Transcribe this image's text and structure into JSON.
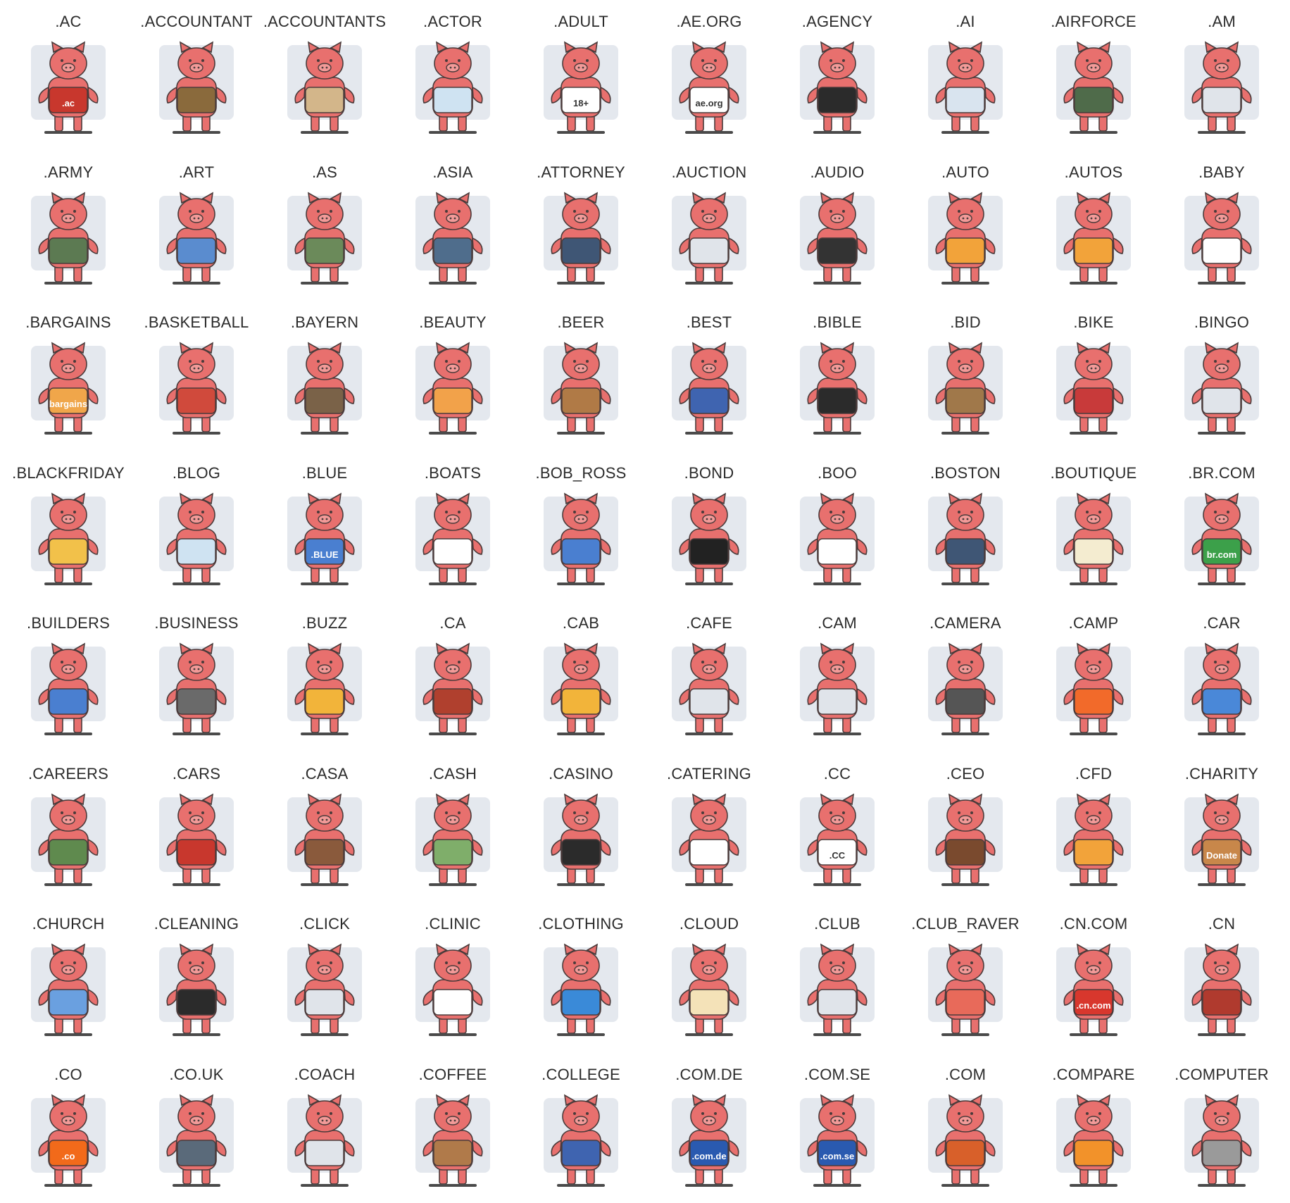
{
  "icon_name": "pig-mascot-icon",
  "colors": {
    "pig_body": "#e8706e",
    "pig_outline": "#4a3b3b",
    "backdrop": "#e4e8ee",
    "ground": "#4a4a4a",
    "label": "#2b2b2b"
  },
  "tiles": [
    {
      "label": ".AC",
      "accent": "#c8372d",
      "badge": ".ac"
    },
    {
      "label": ".ACCOUNTANT",
      "accent": "#8a6a3c"
    },
    {
      "label": ".ACCOUNTANTS",
      "accent": "#d3b68a"
    },
    {
      "label": ".ACTOR",
      "accent": "#cfe3f2"
    },
    {
      "label": ".ADULT",
      "accent": "#ffffff",
      "badge": "18+"
    },
    {
      "label": ".AE.ORG",
      "accent": "#ffffff",
      "badge": "ae.org"
    },
    {
      "label": ".AGENCY",
      "accent": "#2b2b2b"
    },
    {
      "label": ".AI",
      "accent": "#d9e4ef"
    },
    {
      "label": ".AIRFORCE",
      "accent": "#4f6b4a"
    },
    {
      "label": ".AM",
      "accent": "#e0e4ea"
    },
    {
      "label": ".ARMY",
      "accent": "#5c7a52"
    },
    {
      "label": ".ART",
      "accent": "#5a8ccf"
    },
    {
      "label": ".AS",
      "accent": "#6b8a5a"
    },
    {
      "label": ".ASIA",
      "accent": "#4f6d8c"
    },
    {
      "label": ".ATTORNEY",
      "accent": "#3f5675"
    },
    {
      "label": ".AUCTION",
      "accent": "#e0e4ea"
    },
    {
      "label": ".AUDIO",
      "accent": "#333333"
    },
    {
      "label": ".AUTO",
      "accent": "#f2a33a"
    },
    {
      "label": ".AUTOS",
      "accent": "#f2a33a"
    },
    {
      "label": ".BABY",
      "accent": "#ffffff"
    },
    {
      "label": ".BARGAINS",
      "accent": "#f0a64a",
      "badge": "bargains"
    },
    {
      "label": ".BASKETBALL",
      "accent": "#d04a3c"
    },
    {
      "label": ".BAYERN",
      "accent": "#7a6248"
    },
    {
      "label": ".BEAUTY",
      "accent": "#f2a24a"
    },
    {
      "label": ".BEER",
      "accent": "#b07a46"
    },
    {
      "label": ".BEST",
      "accent": "#3f64b0"
    },
    {
      "label": ".BIBLE",
      "accent": "#2b2b2b"
    },
    {
      "label": ".BID",
      "accent": "#a0784a"
    },
    {
      "label": ".BIKE",
      "accent": "#c83a3a"
    },
    {
      "label": ".BINGO",
      "accent": "#e0e4ea"
    },
    {
      "label": ".BLACKFRIDAY",
      "accent": "#f2c14a"
    },
    {
      "label": ".BLOG",
      "accent": "#cfe3f2"
    },
    {
      "label": ".BLUE",
      "accent": "#4a7fd0",
      "badge": ".BLUE"
    },
    {
      "label": ".BOATS",
      "accent": "#ffffff"
    },
    {
      "label": ".BOB_ROSS",
      "accent": "#4a7fd0"
    },
    {
      "label": ".BOND",
      "accent": "#222222"
    },
    {
      "label": ".BOO",
      "accent": "#ffffff"
    },
    {
      "label": ".BOSTON",
      "accent": "#3f5675"
    },
    {
      "label": ".BOUTIQUE",
      "accent": "#f4ecd0"
    },
    {
      "label": ".BR.COM",
      "accent": "#3ca04a",
      "badge": "br.com"
    },
    {
      "label": ".BUILDERS",
      "accent": "#4a7fd0"
    },
    {
      "label": ".BUSINESS",
      "accent": "#6a6a6a"
    },
    {
      "label": ".BUZZ",
      "accent": "#f2b43a"
    },
    {
      "label": ".CA",
      "accent": "#b0402e"
    },
    {
      "label": ".CAB",
      "accent": "#f2b43a"
    },
    {
      "label": ".CAFE",
      "accent": "#e0e4ea"
    },
    {
      "label": ".CAM",
      "accent": "#e0e4ea"
    },
    {
      "label": ".CAMERA",
      "accent": "#555555"
    },
    {
      "label": ".CAMP",
      "accent": "#f26a2a"
    },
    {
      "label": ".CAR",
      "accent": "#4a88d8"
    },
    {
      "label": ".CAREERS",
      "accent": "#5f8a4e"
    },
    {
      "label": ".CARS",
      "accent": "#c8372d"
    },
    {
      "label": ".CASA",
      "accent": "#8a5a3c"
    },
    {
      "label": ".CASH",
      "accent": "#7fae6a"
    },
    {
      "label": ".CASINO",
      "accent": "#2b2b2b"
    },
    {
      "label": ".CATERING",
      "accent": "#ffffff"
    },
    {
      "label": ".CC",
      "accent": "#ffffff",
      "badge": ".CC"
    },
    {
      "label": ".CEO",
      "accent": "#7a4a2e"
    },
    {
      "label": ".CFD",
      "accent": "#f2a33a"
    },
    {
      "label": ".CHARITY",
      "accent": "#c8874a",
      "badge": "Donate"
    },
    {
      "label": ".CHURCH",
      "accent": "#6aa0e0"
    },
    {
      "label": ".CLEANING",
      "accent": "#2b2b2b"
    },
    {
      "label": ".CLICK",
      "accent": "#e0e4ea"
    },
    {
      "label": ".CLINIC",
      "accent": "#ffffff"
    },
    {
      "label": ".CLOTHING",
      "accent": "#3a8ad8"
    },
    {
      "label": ".CLOUD",
      "accent": "#f4e2b8"
    },
    {
      "label": ".CLUB",
      "accent": "#e0e4ea"
    },
    {
      "label": ".CLUB_RAVER",
      "accent": "#e86a5a"
    },
    {
      "label": ".CN.COM",
      "accent": "#d8372d",
      "badge": ".cn.com"
    },
    {
      "label": ".CN",
      "accent": "#b03a2e"
    },
    {
      "label": ".CO",
      "accent": "#f26a1a",
      "badge": ".co"
    },
    {
      "label": ".CO.UK",
      "accent": "#5a6a7a"
    },
    {
      "label": ".COACH",
      "accent": "#e0e4ea"
    },
    {
      "label": ".COFFEE",
      "accent": "#b07a4a"
    },
    {
      "label": ".COLLEGE",
      "accent": "#3f64b0"
    },
    {
      "label": ".COM.DE",
      "accent": "#2a5ab0",
      "badge": ".com.de"
    },
    {
      "label": ".COM.SE",
      "accent": "#2a5ab0",
      "badge": ".com.se"
    },
    {
      "label": ".COM",
      "accent": "#d8602a"
    },
    {
      "label": ".COMPARE",
      "accent": "#f2922a"
    },
    {
      "label": ".COMPUTER",
      "accent": "#9a9a9a"
    }
  ]
}
